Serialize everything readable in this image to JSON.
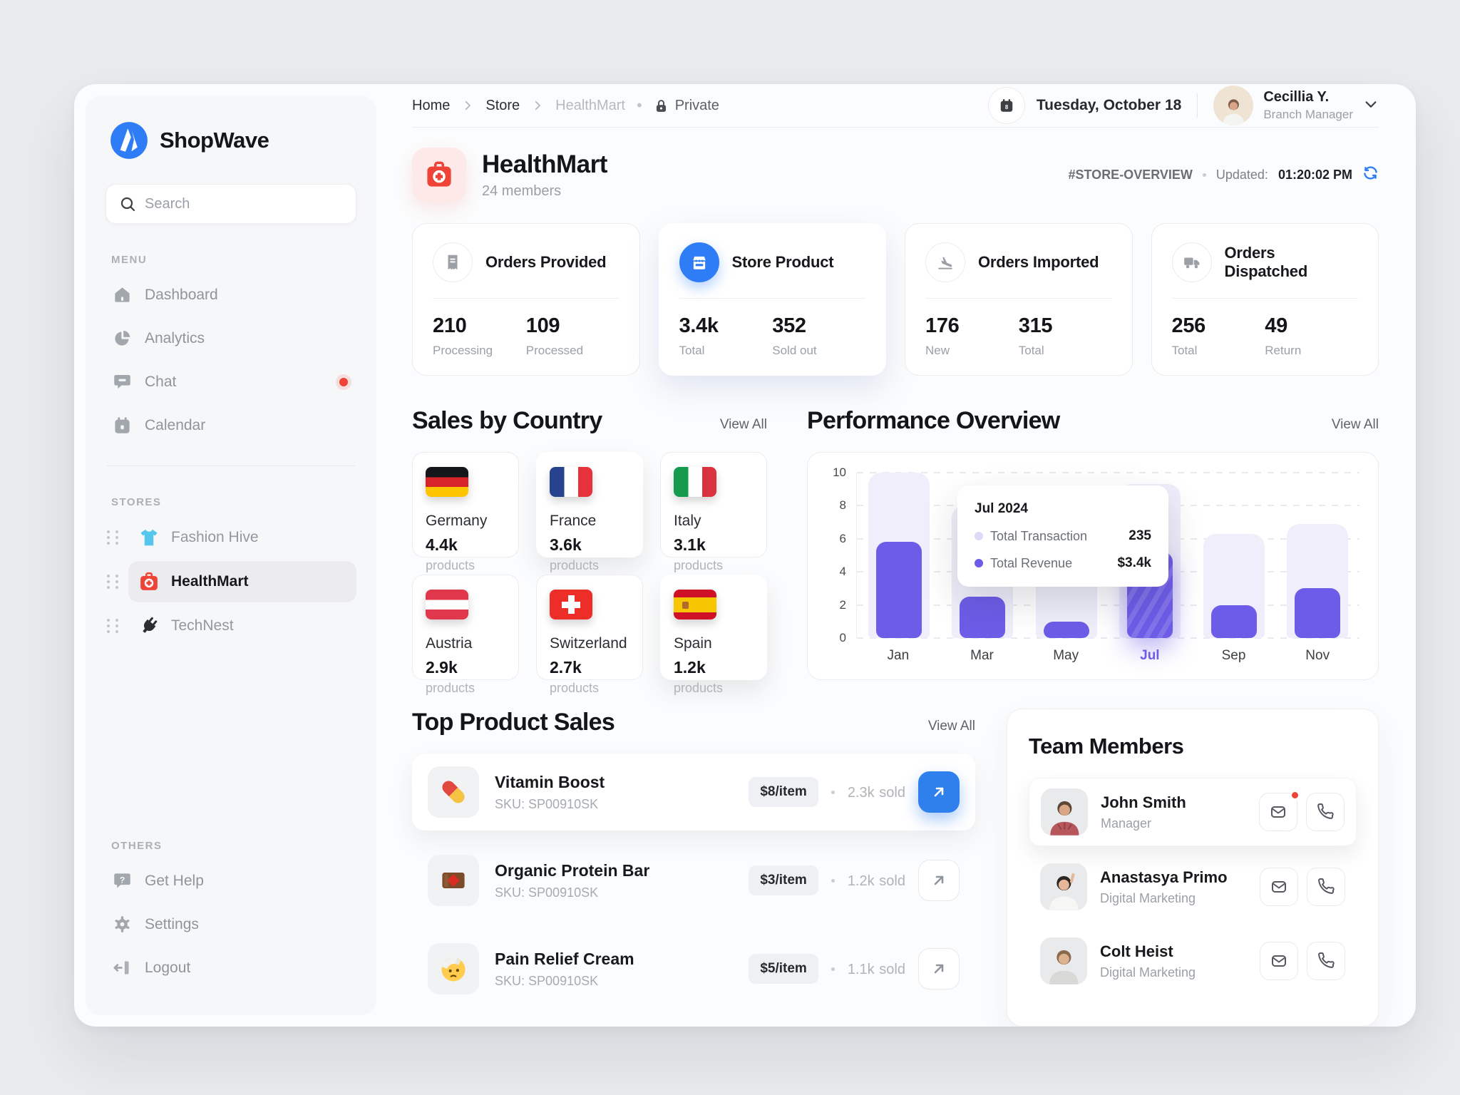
{
  "app": {
    "brand": "ShopWave"
  },
  "sidebar": {
    "search_placeholder": "Search",
    "menu_label": "MENU",
    "menu": [
      {
        "label": "Dashboard"
      },
      {
        "label": "Analytics"
      },
      {
        "label": "Chat",
        "has_notification": true
      },
      {
        "label": "Calendar"
      }
    ],
    "stores_label": "STORES",
    "stores": [
      {
        "label": "Fashion Hive",
        "active": false
      },
      {
        "label": "HealthMart",
        "active": true
      },
      {
        "label": "TechNest",
        "active": false
      }
    ],
    "others_label": "OTHERS",
    "others": [
      {
        "label": "Get Help"
      },
      {
        "label": "Settings"
      },
      {
        "label": "Logout"
      }
    ]
  },
  "header": {
    "breadcrumb": {
      "home": "Home",
      "store": "Store",
      "current": "HealthMart"
    },
    "privacy": "Private",
    "date": "Tuesday, October 18",
    "user": {
      "name": "Cecillia Y.",
      "role": "Branch Manager"
    }
  },
  "store": {
    "name": "HealthMart",
    "members": "24 members",
    "tag": "#STORE-OVERVIEW",
    "updated_label": "Updated:",
    "updated_time": "01:20:02 PM"
  },
  "stats": [
    {
      "title": "Orders Provided",
      "left": {
        "value": "210",
        "label": "Processing"
      },
      "right": {
        "value": "109",
        "label": "Processed"
      }
    },
    {
      "title": "Store Product",
      "left": {
        "value": "3.4k",
        "label": "Total"
      },
      "right": {
        "value": "352",
        "label": "Sold out"
      }
    },
    {
      "title": "Orders Imported",
      "left": {
        "value": "176",
        "label": "New"
      },
      "right": {
        "value": "315",
        "label": "Total"
      }
    },
    {
      "title": "Orders Dispatched",
      "left": {
        "value": "256",
        "label": "Total"
      },
      "right": {
        "value": "49",
        "label": "Return"
      }
    }
  ],
  "sales_by_country": {
    "title": "Sales by Country",
    "view_all": "View All",
    "products_suffix": "products",
    "countries": [
      {
        "name": "Germany",
        "value": "4.4k",
        "flag": "de"
      },
      {
        "name": "France",
        "value": "3.6k",
        "flag": "fr"
      },
      {
        "name": "Italy",
        "value": "3.1k",
        "flag": "it"
      },
      {
        "name": "Austria",
        "value": "2.9k",
        "flag": "at"
      },
      {
        "name": "Switzerland",
        "value": "2.7k",
        "flag": "ch"
      },
      {
        "name": "Spain",
        "value": "1.2k",
        "flag": "es"
      }
    ]
  },
  "performance": {
    "title": "Performance Overview",
    "view_all": "View All"
  },
  "chart_data": {
    "type": "bar",
    "title": "Performance Overview",
    "x": [
      "Jan",
      "Mar",
      "May",
      "Jul",
      "Sep",
      "Nov"
    ],
    "series": [
      {
        "name": "Total Transaction",
        "values": [
          10,
          8,
          4.3,
          9.3,
          6.3,
          6.9
        ],
        "color": "#EFEEFA"
      },
      {
        "name": "Total Revenue",
        "values": [
          5.8,
          2.5,
          1,
          5.2,
          2,
          3
        ],
        "color": "#6D5CE7"
      }
    ],
    "ylim": [
      0,
      10
    ],
    "yticks": [
      0,
      2,
      4,
      6,
      8,
      10
    ],
    "grid": "dashed-horizontal",
    "highlight_index": 3,
    "tooltip": {
      "title": "Jul 2024",
      "rows": [
        {
          "label": "Total Transaction",
          "value": "235"
        },
        {
          "label": "Total Revenue",
          "value": "$3.4k"
        }
      ]
    }
  },
  "top_products": {
    "title": "Top Product Sales",
    "view_all": "View All",
    "sku_label": "SKU:",
    "sold_suffix": "sold",
    "items": [
      {
        "name": "Vitamin Boost",
        "sku": "SP00910SK",
        "price": "$8/item",
        "sold": "2.3k"
      },
      {
        "name": "Organic Protein Bar",
        "sku": "SP00910SK",
        "price": "$3/item",
        "sold": "1.2k"
      },
      {
        "name": "Pain Relief Cream",
        "sku": "SP00910SK",
        "price": "$5/item",
        "sold": "1.1k"
      }
    ]
  },
  "team": {
    "title": "Team Members",
    "members": [
      {
        "name": "John Smith",
        "role": "Manager",
        "unread": true
      },
      {
        "name": "Anastasya Primo",
        "role": "Digital Marketing",
        "unread": false
      },
      {
        "name": "Colt Heist",
        "role": "Digital Marketing",
        "unread": false
      }
    ]
  },
  "colors": {
    "accent_blue": "#2F7DF6",
    "accent_purple": "#6D5CE7",
    "bar_light": "#EFEEFA",
    "alert_red": "#EE4437",
    "page_bg": "#E9EBEE"
  }
}
